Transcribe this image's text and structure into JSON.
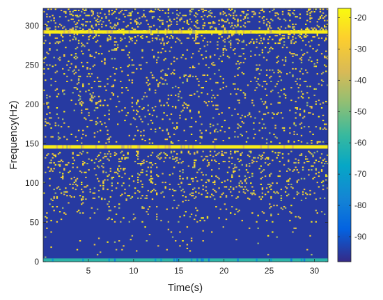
{
  "chart_data": {
    "type": "heatmap",
    "xlabel": "Time(s)",
    "ylabel": "Frequency(Hz)",
    "xlim": [
      0,
      31.5
    ],
    "ylim": [
      0,
      322
    ],
    "x_ticks": [
      "5",
      "10",
      "15",
      "20",
      "25",
      "30"
    ],
    "y_ticks": [
      "0",
      "50",
      "100",
      "150",
      "200",
      "250",
      "300"
    ],
    "x_tick_values": [
      5,
      10,
      15,
      20,
      25,
      30
    ],
    "y_tick_values": [
      0,
      50,
      100,
      150,
      200,
      250,
      300
    ],
    "colorbar": {
      "range": [
        -98,
        -17
      ],
      "ticks": [
        "-20",
        "-30",
        "-40",
        "-50",
        "-60",
        "-70",
        "-80",
        "-90"
      ],
      "tick_values": [
        -20,
        -30,
        -40,
        -50,
        -60,
        -70,
        -80,
        -90
      ],
      "colormap": "parula"
    },
    "background_level": -95,
    "strong_lines": [
      {
        "frequency": 292,
        "level": -20
      },
      {
        "frequency": 146,
        "level": -20
      },
      {
        "frequency": 2,
        "level": -60
      }
    ],
    "noise_bands": [
      {
        "from": 277,
        "to": 322,
        "density": 0.14
      },
      {
        "from": 150,
        "to": 275,
        "density": 0.06
      },
      {
        "from": 125,
        "to": 140,
        "density": 0.12
      },
      {
        "from": 100,
        "to": 125,
        "density": 0.08
      },
      {
        "from": 80,
        "to": 100,
        "density": 0.09
      },
      {
        "from": 50,
        "to": 80,
        "density": 0.035
      },
      {
        "from": 5,
        "to": 45,
        "density": 0.012
      }
    ],
    "grid": false
  }
}
